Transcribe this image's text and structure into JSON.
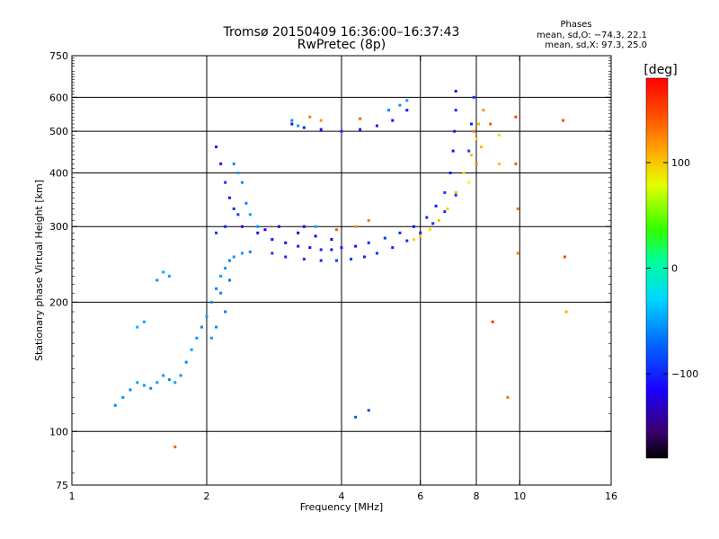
{
  "chart_data": {
    "type": "scatter",
    "title": "Tromsø 20150409 16:36:00–16:37:43",
    "subtitle": "RwPretec (8p)",
    "xlabel": "Frequency [MHz]",
    "ylabel": "Stationary phase Virtual Height [km]",
    "x_scale": "log",
    "y_scale": "log",
    "xlim": [
      1,
      16
    ],
    "ylim": [
      75,
      750
    ],
    "x_ticks": [
      1,
      2,
      4,
      6,
      8,
      10,
      16
    ],
    "y_ticks": [
      75,
      100,
      200,
      300,
      400,
      500,
      600,
      750
    ],
    "x_grid_lines": [
      2,
      4,
      6,
      8,
      10
    ],
    "y_grid_lines": [
      100,
      200,
      300,
      400,
      500,
      600
    ],
    "grid": true,
    "annotation": {
      "heading": "Phases",
      "line1": "mean, sd,O: −74.3, 22.1",
      "line2": "mean, sd,X:  97.3, 25.0"
    },
    "colorbar": {
      "label": "[deg]",
      "range": [
        -180,
        180
      ],
      "ticks": [
        100,
        0,
        -100
      ],
      "tick_labels": [
        "100",
        "0",
        "−100"
      ]
    },
    "series": [
      {
        "mode": "O",
        "points": [
          [
            2.1,
            460,
            -100
          ],
          [
            2.15,
            420,
            -110
          ],
          [
            2.2,
            380,
            -95
          ],
          [
            2.25,
            350,
            -105
          ],
          [
            2.3,
            330,
            -100
          ],
          [
            2.35,
            320,
            -90
          ],
          [
            2.4,
            300,
            -110
          ],
          [
            2.2,
            300,
            -100
          ],
          [
            2.1,
            290,
            -95
          ],
          [
            2.6,
            290,
            -120
          ],
          [
            2.8,
            280,
            -110
          ],
          [
            3.0,
            275,
            -115
          ],
          [
            3.2,
            270,
            -105
          ],
          [
            3.4,
            268,
            -110
          ],
          [
            3.6,
            265,
            -100
          ],
          [
            3.8,
            265,
            -110
          ],
          [
            4.0,
            268,
            -105
          ],
          [
            4.3,
            270,
            -110
          ],
          [
            4.6,
            275,
            -100
          ],
          [
            5.0,
            282,
            -95
          ],
          [
            5.4,
            290,
            -100
          ],
          [
            5.8,
            300,
            -110
          ],
          [
            6.2,
            315,
            -100
          ],
          [
            6.5,
            335,
            -105
          ],
          [
            6.8,
            360,
            -95
          ],
          [
            7.0,
            400,
            -100
          ],
          [
            7.1,
            450,
            -110
          ],
          [
            7.15,
            500,
            -105
          ],
          [
            7.2,
            560,
            -100
          ],
          [
            7.2,
            620,
            -110
          ],
          [
            2.8,
            260,
            -90
          ],
          [
            3.0,
            255,
            -100
          ],
          [
            3.3,
            252,
            -95
          ],
          [
            3.6,
            250,
            -100
          ],
          [
            3.9,
            250,
            -90
          ],
          [
            4.2,
            252,
            -95
          ],
          [
            4.5,
            255,
            -100
          ],
          [
            4.8,
            260,
            -95
          ],
          [
            5.2,
            268,
            -100
          ],
          [
            5.6,
            278,
            -95
          ],
          [
            6.0,
            290,
            -100
          ],
          [
            6.4,
            305,
            -95
          ],
          [
            6.8,
            325,
            -100
          ],
          [
            7.2,
            355,
            -95
          ],
          [
            7.5,
            400,
            -100
          ],
          [
            7.7,
            450,
            -90
          ],
          [
            7.8,
            520,
            -100
          ],
          [
            7.9,
            600,
            -95
          ],
          [
            3.1,
            520,
            -110
          ],
          [
            3.3,
            510,
            -105
          ],
          [
            3.6,
            505,
            -110
          ],
          [
            4.0,
            500,
            -100
          ],
          [
            4.4,
            505,
            -105
          ],
          [
            4.8,
            515,
            -100
          ],
          [
            5.2,
            530,
            -110
          ],
          [
            5.6,
            560,
            -105
          ],
          [
            3.2,
            290,
            -130
          ],
          [
            3.5,
            285,
            -125
          ],
          [
            3.8,
            280,
            -120
          ],
          [
            2.7,
            295,
            -115
          ],
          [
            2.9,
            300,
            -125
          ],
          [
            3.3,
            300,
            -120
          ]
        ]
      },
      {
        "mode": "X",
        "points": [
          [
            5.8,
            280,
            95
          ],
          [
            6.0,
            285,
            100
          ],
          [
            6.3,
            295,
            90
          ],
          [
            6.6,
            310,
            100
          ],
          [
            6.9,
            330,
            95
          ],
          [
            7.2,
            360,
            110
          ],
          [
            7.5,
            400,
            90
          ],
          [
            7.8,
            440,
            100
          ],
          [
            8.0,
            480,
            95
          ],
          [
            8.1,
            520,
            110
          ],
          [
            7.7,
            380,
            80
          ],
          [
            8.0,
            420,
            120
          ],
          [
            8.2,
            460,
            105
          ],
          [
            7.9,
            500,
            130
          ],
          [
            8.3,
            560,
            120
          ],
          [
            4.3,
            300,
            120
          ],
          [
            4.6,
            310,
            130
          ],
          [
            3.9,
            295,
            140
          ],
          [
            3.4,
            540,
            130
          ],
          [
            3.6,
            530,
            120
          ],
          [
            4.4,
            535,
            140
          ],
          [
            9.8,
            540,
            150
          ],
          [
            9.8,
            420,
            140
          ],
          [
            9.9,
            330,
            130
          ],
          [
            9.9,
            260,
            120
          ],
          [
            9.0,
            490,
            90
          ],
          [
            9.0,
            420,
            100
          ],
          [
            8.6,
            520,
            140
          ],
          [
            12.6,
            255,
            150
          ],
          [
            12.7,
            190,
            110
          ],
          [
            12.5,
            530,
            150
          ],
          [
            1.7,
            92,
            140
          ],
          [
            9.4,
            120,
            130
          ],
          [
            8.7,
            180,
            160
          ]
        ]
      },
      {
        "mode": "low",
        "points": [
          [
            1.25,
            115,
            -60
          ],
          [
            1.3,
            120,
            -55
          ],
          [
            1.35,
            125,
            -60
          ],
          [
            1.4,
            130,
            -50
          ],
          [
            1.45,
            128,
            -55
          ],
          [
            1.5,
            126,
            -60
          ],
          [
            1.55,
            130,
            -50
          ],
          [
            1.6,
            135,
            -55
          ],
          [
            1.65,
            132,
            -60
          ],
          [
            1.7,
            130,
            -50
          ],
          [
            1.75,
            135,
            -55
          ],
          [
            1.8,
            145,
            -60
          ],
          [
            1.85,
            155,
            -50
          ],
          [
            1.9,
            165,
            -55
          ],
          [
            1.95,
            175,
            -60
          ],
          [
            2.0,
            185,
            -50
          ],
          [
            2.05,
            200,
            -55
          ],
          [
            2.1,
            215,
            -60
          ],
          [
            2.15,
            230,
            -50
          ],
          [
            2.2,
            240,
            -55
          ],
          [
            2.25,
            250,
            -60
          ],
          [
            2.3,
            255,
            -50
          ],
          [
            2.4,
            260,
            -55
          ],
          [
            2.5,
            262,
            -60
          ],
          [
            1.4,
            175,
            -45
          ],
          [
            1.45,
            180,
            -50
          ],
          [
            1.55,
            225,
            -55
          ],
          [
            1.6,
            235,
            -45
          ],
          [
            1.65,
            230,
            -50
          ],
          [
            2.3,
            420,
            -60
          ],
          [
            2.35,
            400,
            -50
          ],
          [
            2.4,
            380,
            -55
          ],
          [
            2.45,
            340,
            -60
          ],
          [
            2.5,
            320,
            -50
          ],
          [
            2.6,
            300,
            -55
          ],
          [
            2.2,
            190,
            -65
          ],
          [
            2.1,
            175,
            -60
          ],
          [
            2.05,
            165,
            -55
          ],
          [
            2.15,
            210,
            -60
          ],
          [
            2.25,
            225,
            -65
          ],
          [
            3.1,
            530,
            -60
          ],
          [
            3.2,
            515,
            -55
          ],
          [
            3.5,
            300,
            -45
          ],
          [
            5.1,
            560,
            -60
          ],
          [
            5.4,
            575,
            -55
          ],
          [
            5.6,
            590,
            -50
          ],
          [
            4.3,
            108,
            -80
          ],
          [
            4.6,
            112,
            -85
          ]
        ]
      }
    ]
  }
}
